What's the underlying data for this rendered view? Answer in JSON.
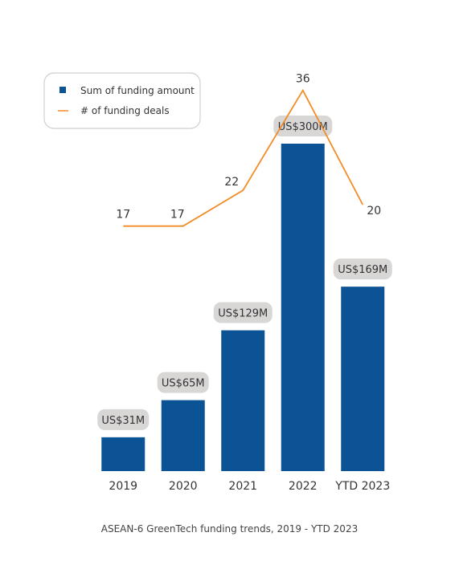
{
  "chart_data": {
    "type": "bar",
    "categories": [
      "2019",
      "2020",
      "2021",
      "2022",
      "YTD 2023"
    ],
    "series": [
      {
        "name": "Sum of funding amount",
        "type": "bar",
        "values": [
          31,
          65,
          129,
          300,
          169
        ],
        "data_labels": [
          "US$31M",
          "US$65M",
          "US$129M",
          "US$300M",
          "US$169M"
        ],
        "color": "#0b5394"
      },
      {
        "name": "# of funding deals",
        "type": "line",
        "values": [
          17,
          17,
          22,
          36,
          20
        ],
        "data_labels": [
          "17",
          "17",
          "22",
          "36",
          "20"
        ],
        "color": "#f28c28"
      }
    ],
    "legend_position": "top-left",
    "grid": false
  },
  "caption": "ASEAN-6 GreenTech funding trends, 2019 - YTD 2023"
}
